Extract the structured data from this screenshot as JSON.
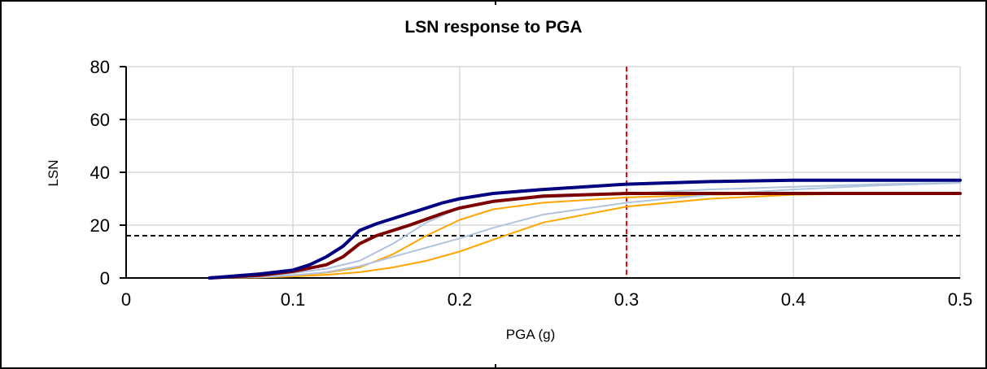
{
  "chart_data": {
    "type": "line",
    "title": "LSN response to PGA",
    "xlabel": "PGA (g)",
    "ylabel": "LSN",
    "xlim": [
      0,
      0.5
    ],
    "ylim": [
      0,
      80
    ],
    "x_ticks": [
      "0",
      "0.1",
      "0.2",
      "0.3",
      "0.4",
      "0.5"
    ],
    "y_ticks": [
      "0",
      "20",
      "40",
      "60",
      "80"
    ],
    "grid": true,
    "series": [
      {
        "color": "#ffa500",
        "width": 2,
        "x": [
          0.05,
          0.08,
          0.1,
          0.12,
          0.14,
          0.16,
          0.18,
          0.2,
          0.22,
          0.25,
          0.3,
          0.35,
          0.4,
          0.45,
          0.5
        ],
        "y": [
          0,
          0.2,
          0.6,
          1.2,
          2.2,
          4,
          6.5,
          10,
          14.5,
          21,
          27,
          30,
          31.5,
          32,
          32
        ]
      },
      {
        "color": "#ffa500",
        "width": 2,
        "x": [
          0.05,
          0.08,
          0.1,
          0.12,
          0.14,
          0.16,
          0.18,
          0.2,
          0.22,
          0.25,
          0.3,
          0.35,
          0.4,
          0.45,
          0.5
        ],
        "y": [
          0,
          0.3,
          1,
          2,
          4,
          9,
          16,
          22,
          26,
          28.5,
          30.5,
          31.5,
          32,
          32,
          32
        ]
      },
      {
        "color": "#b0c4de",
        "width": 2,
        "x": [
          0.05,
          0.08,
          0.1,
          0.12,
          0.14,
          0.16,
          0.18,
          0.2,
          0.22,
          0.25,
          0.3,
          0.35,
          0.4,
          0.45,
          0.5
        ],
        "y": [
          0,
          0.3,
          1,
          2.2,
          4.5,
          8,
          11.5,
          15,
          19,
          24,
          28.5,
          31.5,
          33.5,
          35,
          36
        ]
      },
      {
        "color": "#b0c4de",
        "width": 2,
        "x": [
          0.05,
          0.08,
          0.1,
          0.12,
          0.14,
          0.16,
          0.18,
          0.2,
          0.22,
          0.25,
          0.3,
          0.35,
          0.4,
          0.45,
          0.5
        ],
        "y": [
          0,
          0.5,
          1.8,
          3.5,
          6.5,
          13,
          21,
          26.5,
          29,
          30.5,
          32,
          33.5,
          34.5,
          35.5,
          36
        ]
      },
      {
        "color": "#7b0000",
        "width": 4,
        "x": [
          0.05,
          0.08,
          0.1,
          0.12,
          0.13,
          0.14,
          0.15,
          0.17,
          0.19,
          0.2,
          0.22,
          0.25,
          0.3,
          0.35,
          0.4,
          0.45,
          0.5
        ],
        "y": [
          0,
          1,
          2.5,
          5,
          8,
          13,
          16,
          20,
          24.5,
          26.5,
          29,
          31,
          32,
          32,
          32,
          32,
          32
        ]
      },
      {
        "color": "#000080",
        "width": 4,
        "x": [
          0.05,
          0.08,
          0.1,
          0.11,
          0.12,
          0.13,
          0.14,
          0.15,
          0.17,
          0.19,
          0.2,
          0.22,
          0.25,
          0.3,
          0.35,
          0.4,
          0.45,
          0.5
        ],
        "y": [
          0,
          1.5,
          3,
          5,
          8,
          12,
          18,
          20.5,
          24.5,
          28.5,
          30,
          32,
          33.5,
          35.5,
          36.5,
          37,
          37,
          37
        ]
      }
    ],
    "reference_lines": [
      {
        "orientation": "horizontal",
        "value": 16,
        "color": "#000000",
        "dash": "dashed"
      },
      {
        "orientation": "vertical",
        "value": 0.3,
        "color": "#ff0000",
        "dash": "dashed"
      }
    ]
  }
}
